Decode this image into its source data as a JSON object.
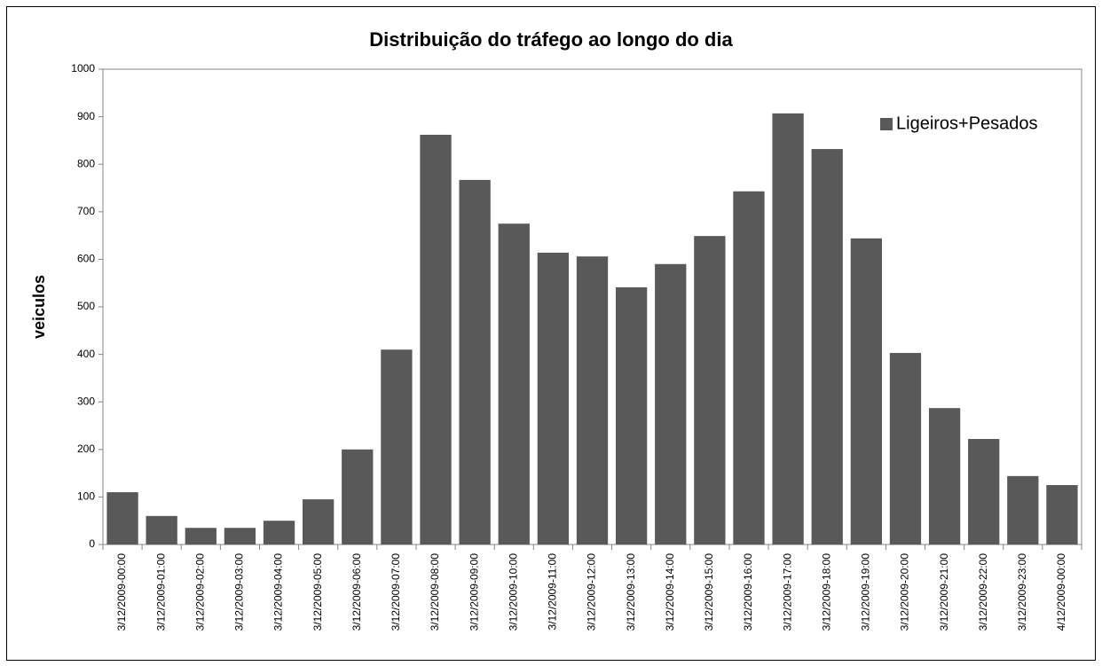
{
  "chart_data": {
    "type": "bar",
    "title": "Distribuição do tráfego ao longo do dia",
    "y_label": "veiculos",
    "categories": [
      "3/12/2009-00:00",
      "3/12/2009-01:00",
      "3/12/2009-02:00",
      "3/12/2009-03:00",
      "3/12/2009-04:00",
      "3/12/2009-05:00",
      "3/12/2009-06:00",
      "3/12/2009-07:00",
      "3/12/2009-08:00",
      "3/12/2009-09:00",
      "3/12/2009-10:00",
      "3/12/2009-11:00",
      "3/12/2009-12:00",
      "3/12/2009-13:00",
      "3/12/2009-14:00",
      "3/12/2009-15:00",
      "3/12/2009-16:00",
      "3/12/2009-17:00",
      "3/12/2009-18:00",
      "3/12/2009-19:00",
      "3/12/2009-20:00",
      "3/12/2009-21:00",
      "3/12/2009-22:00",
      "3/12/2009-23:00",
      "4/12/2009-00:00"
    ],
    "series": [
      {
        "name": "Ligeiros+Pesados",
        "color": "#595959",
        "values": [
          110,
          60,
          35,
          35,
          50,
          95,
          200,
          410,
          862,
          767,
          675,
          614,
          606,
          541,
          590,
          649,
          743,
          907,
          832,
          644,
          403,
          287,
          222,
          144,
          125
        ]
      }
    ],
    "ylim": [
      0,
      1000
    ],
    "yticks": [
      0,
      100,
      200,
      300,
      400,
      500,
      600,
      700,
      800,
      900,
      1000
    ],
    "grid": false,
    "legend": "top-right"
  }
}
